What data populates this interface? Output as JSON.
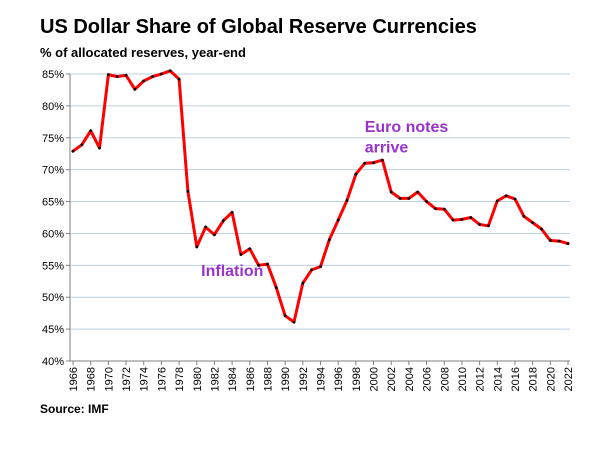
{
  "title": "US Dollar Share of Global  Reserve Currencies",
  "subtitle": "% of allocated reserves, year-end",
  "source": "Source: IMF",
  "chart_data": {
    "type": "line",
    "title": "US Dollar Share of Global  Reserve Currencies",
    "subtitle": "% of allocated reserves, year-end",
    "xlabel": "",
    "ylabel": "",
    "xlim": [
      1966,
      2022
    ],
    "ylim": [
      40,
      85
    ],
    "y_ticks": [
      40,
      45,
      50,
      55,
      60,
      65,
      70,
      75,
      80,
      85
    ],
    "y_tick_labels": [
      "40%",
      "45%",
      "50%",
      "55%",
      "60%",
      "65%",
      "70%",
      "75%",
      "80%",
      "85%"
    ],
    "x_tick_labels": [
      "1966",
      "1968",
      "1970",
      "1972",
      "1974",
      "1976",
      "1978",
      "1980",
      "1982",
      "1984",
      "1986",
      "1988",
      "1990",
      "1992",
      "1994",
      "1996",
      "1998",
      "2000",
      "2002",
      "2004",
      "2006",
      "2008",
      "2010",
      "2012",
      "2014",
      "2016",
      "2018",
      "2020",
      "2022"
    ],
    "grid": "horizontal",
    "line_color": "#ff0000",
    "marker_color": "#000000",
    "annotation_color": "#9933cc",
    "series": [
      {
        "x": [
          1966,
          1967,
          1968,
          1969,
          1970,
          1971,
          1972,
          1973,
          1974,
          1975,
          1976,
          1977,
          1978,
          1979,
          1980,
          1981,
          1982,
          1983,
          1984,
          1985,
          1986,
          1987,
          1988,
          1989,
          1990,
          1991,
          1992,
          1993,
          1994,
          1995,
          1996,
          1997,
          1998,
          1999,
          2000,
          2001,
          2002,
          2003,
          2004,
          2005,
          2006,
          2007,
          2008,
          2009,
          2010,
          2011,
          2012,
          2013,
          2014,
          2015,
          2016,
          2017,
          2018,
          2019,
          2020,
          2021,
          2022
        ],
        "y": [
          72.9,
          73.9,
          76.1,
          73.4,
          84.9,
          84.6,
          84.8,
          82.6,
          83.9,
          84.6,
          85.0,
          85.5,
          84.2,
          66.6,
          57.9,
          61.0,
          59.8,
          62.0,
          63.3,
          56.7,
          57.6,
          55.0,
          55.2,
          51.5,
          47.1,
          46.1,
          52.2,
          54.3,
          54.8,
          59.0,
          62.1,
          65.2,
          69.3,
          71.0,
          71.1,
          71.5,
          66.5,
          65.5,
          65.5,
          66.5,
          65.0,
          63.9,
          63.8,
          62.1,
          62.2,
          62.5,
          61.4,
          61.2,
          65.1,
          65.9,
          65.4,
          62.7,
          61.7,
          60.7,
          58.9,
          58.8,
          58.4
        ]
      }
    ],
    "annotations": [
      {
        "text": "Inflation",
        "x": 1980.5,
        "y": 53.3
      },
      {
        "text": "Euro notes",
        "x": 1999,
        "y": 75.9
      },
      {
        "text": "arrive",
        "x": 1999,
        "y": 72.7
      }
    ]
  }
}
